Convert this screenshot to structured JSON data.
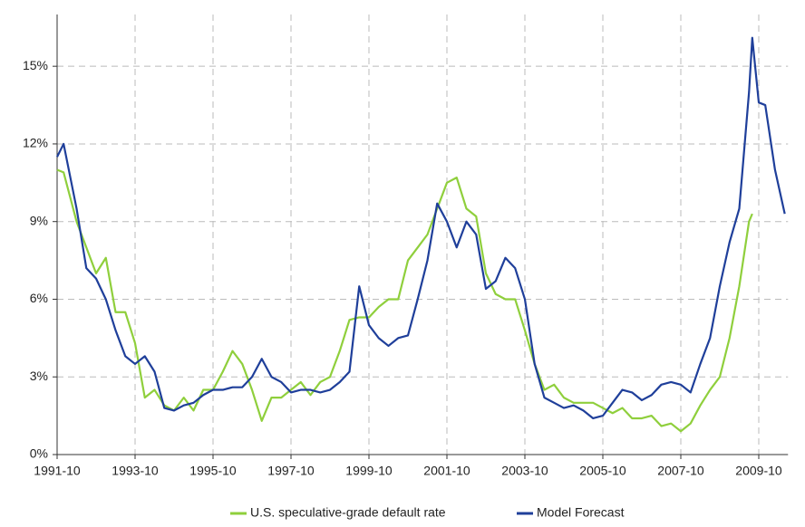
{
  "chart_data": {
    "type": "line",
    "x": [
      "1991-10",
      "1991-12",
      "1992-04",
      "1992-07",
      "1992-10",
      "1993-01",
      "1993-04",
      "1993-07",
      "1993-10",
      "1994-01",
      "1994-04",
      "1994-07",
      "1994-10",
      "1995-01",
      "1995-04",
      "1995-07",
      "1995-10",
      "1996-01",
      "1996-04",
      "1996-07",
      "1996-10",
      "1997-01",
      "1997-04",
      "1997-07",
      "1997-10",
      "1998-01",
      "1998-04",
      "1998-07",
      "1998-10",
      "1999-01",
      "1999-04",
      "1999-07",
      "1999-10",
      "2000-01",
      "2000-04",
      "2000-07",
      "2000-10",
      "2001-01",
      "2001-04",
      "2001-07",
      "2001-10",
      "2002-01",
      "2002-04",
      "2002-07",
      "2002-10",
      "2003-01",
      "2003-04",
      "2003-07",
      "2003-10",
      "2004-01",
      "2004-04",
      "2004-07",
      "2004-10",
      "2005-01",
      "2005-04",
      "2005-07",
      "2005-10",
      "2006-01",
      "2006-04",
      "2006-07",
      "2006-10",
      "2007-01",
      "2007-04",
      "2007-07",
      "2007-10",
      "2008-01",
      "2008-04",
      "2008-07",
      "2008-10",
      "2009-01",
      "2009-04",
      "2009-07",
      "2009-08",
      "2009-10",
      "2009-12",
      "2010-03",
      "2010-06"
    ],
    "series": [
      {
        "name": "U.S. speculative-grade default rate",
        "color": "#8fcf3c",
        "values": [
          11.0,
          10.9,
          9.0,
          8.0,
          7.0,
          7.6,
          5.5,
          5.5,
          4.3,
          2.2,
          2.5,
          1.9,
          1.7,
          2.2,
          1.7,
          2.5,
          2.5,
          3.2,
          4.0,
          3.5,
          2.5,
          1.3,
          2.2,
          2.2,
          2.5,
          2.8,
          2.3,
          2.8,
          3.0,
          4.0,
          5.2,
          5.3,
          5.3,
          5.7,
          6.0,
          6.0,
          7.5,
          8.0,
          8.5,
          9.5,
          10.5,
          10.7,
          9.5,
          9.2,
          7.0,
          6.2,
          6.0,
          6.0,
          4.8,
          3.5,
          2.5,
          2.7,
          2.2,
          2.0,
          2.0,
          2.0,
          1.8,
          1.6,
          1.8,
          1.4,
          1.4,
          1.5,
          1.1,
          1.2,
          0.9,
          1.2,
          1.9,
          2.5,
          3.0,
          4.5,
          6.5,
          9.0,
          9.3,
          null,
          null,
          null,
          null
        ]
      },
      {
        "name": "Model Forecast",
        "color": "#1f3f9a",
        "values": [
          11.5,
          12.0,
          9.5,
          7.2,
          6.8,
          6.0,
          4.8,
          3.8,
          3.5,
          3.8,
          3.2,
          1.8,
          1.7,
          1.9,
          2.0,
          2.3,
          2.5,
          2.5,
          2.6,
          2.6,
          3.0,
          3.7,
          3.0,
          2.8,
          2.4,
          2.5,
          2.5,
          2.4,
          2.5,
          2.8,
          3.2,
          6.5,
          5.0,
          4.5,
          4.2,
          4.5,
          4.6,
          6.0,
          7.5,
          9.7,
          9.0,
          8.0,
          9.0,
          8.5,
          6.4,
          6.7,
          7.6,
          7.2,
          6.0,
          3.5,
          2.2,
          2.0,
          1.8,
          1.9,
          1.7,
          1.4,
          1.5,
          2.0,
          2.5,
          2.4,
          2.1,
          2.3,
          2.7,
          2.8,
          2.7,
          2.4,
          3.5,
          4.5,
          6.5,
          8.2,
          9.5,
          14.0,
          16.1,
          13.6,
          13.5,
          11.0,
          9.3
        ]
      }
    ],
    "xlim": [
      "1991-10",
      "2010-07"
    ],
    "xticks": [
      "1991-10",
      "1993-10",
      "1995-10",
      "1997-10",
      "1999-10",
      "2001-10",
      "2003-10",
      "2005-10",
      "2007-10",
      "2009-10"
    ],
    "ylim": [
      0,
      17
    ],
    "yticks": [
      {
        "value": 0,
        "label": "0%"
      },
      {
        "value": 3,
        "label": "3%"
      },
      {
        "value": 6,
        "label": "6%"
      },
      {
        "value": 9,
        "label": "9%"
      },
      {
        "value": 12,
        "label": "12%"
      },
      {
        "value": 15,
        "label": "15%"
      }
    ],
    "grid": true,
    "legend": "bottom"
  }
}
